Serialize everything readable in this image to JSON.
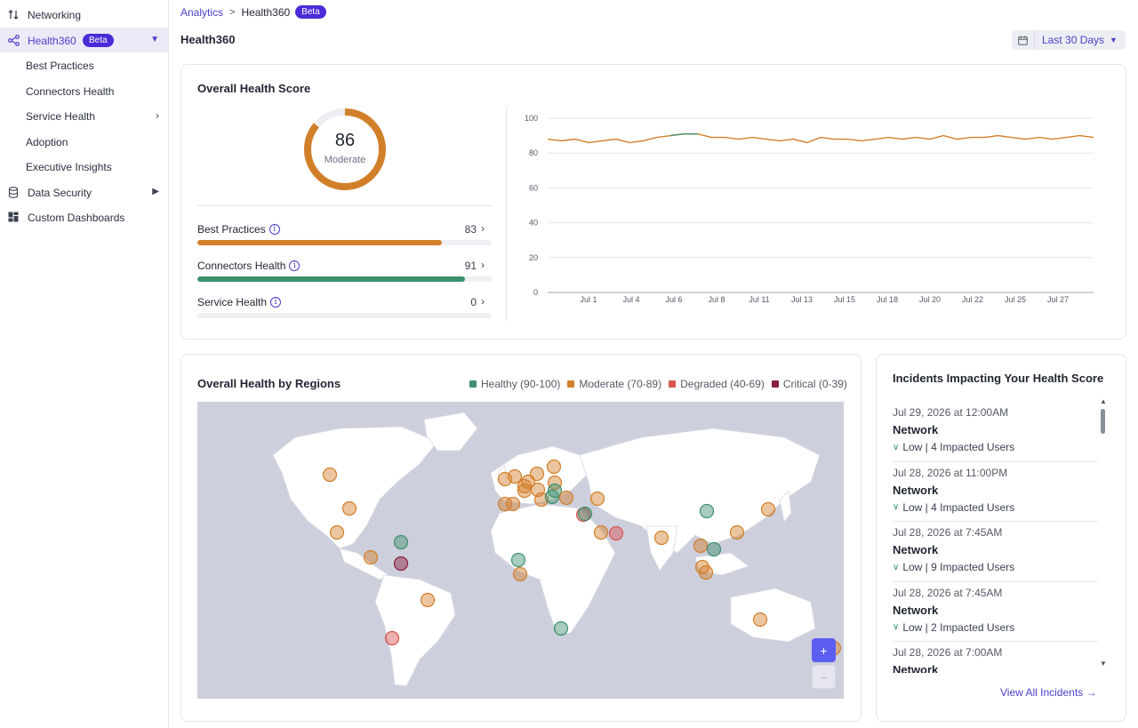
{
  "sidebar": {
    "items": [
      {
        "label": "Networking",
        "icon": "sort-arrows-icon"
      },
      {
        "label": "Health360",
        "badge": "Beta",
        "icon": "share-nodes-icon"
      },
      {
        "label": "Best Practices"
      },
      {
        "label": "Connectors Health"
      },
      {
        "label": "Service Health"
      },
      {
        "label": "Adoption"
      },
      {
        "label": "Executive Insights"
      },
      {
        "label": "Data Security",
        "icon": "database-icon"
      },
      {
        "label": "Custom Dashboards",
        "icon": "dashboard-grid-icon"
      }
    ]
  },
  "header": {
    "breadcrumb": {
      "parent": "Analytics",
      "current": "Health360",
      "badge": "Beta"
    },
    "title": "Health360",
    "date_range": "Last 30 Days"
  },
  "score_card": {
    "title": "Overall Health Score",
    "score": "86",
    "score_value": 86,
    "status": "Moderate",
    "metrics": [
      {
        "label": "Best Practices",
        "value": "83",
        "fraction": 0.83,
        "color": "#d27f2a"
      },
      {
        "label": "Connectors Health",
        "value": "91",
        "fraction": 0.91,
        "color": "#3d8f6e"
      },
      {
        "label": "Service Health",
        "value": "0",
        "fraction": 0,
        "color": "#3d8f6e"
      }
    ]
  },
  "chart_data": {
    "type": "line",
    "yticks": [
      "0",
      "20",
      "40",
      "60",
      "80",
      "100"
    ],
    "ylim": [
      0,
      100
    ],
    "xticks": [
      "Jul 1",
      "Jul 4",
      "Jul 6",
      "Jul 8",
      "Jul 11",
      "Jul 13",
      "Jul 15",
      "Jul 18",
      "Jul 20",
      "Jul 22",
      "Jul 25",
      "Jul 27"
    ],
    "series": [
      {
        "color": "#d27f2a",
        "values": [
          88,
          87,
          88,
          86,
          87,
          88,
          86,
          87,
          89,
          90,
          91,
          91,
          89,
          89,
          88,
          89,
          88,
          87,
          88,
          86,
          89,
          88,
          88,
          87,
          88,
          89,
          88,
          89,
          88,
          90,
          88,
          89,
          89,
          90,
          89,
          88,
          89,
          88,
          89,
          90,
          89
        ]
      }
    ],
    "colors": {
      "moderate": "#d27f2a",
      "healthy": "#3d8f6e"
    }
  },
  "regions_card": {
    "title": "Overall Health by Regions",
    "legend": [
      {
        "label": "Healthy (90-100)",
        "color": "#3d8f6e"
      },
      {
        "label": "Moderate (70-89)",
        "color": "#d27f2a"
      },
      {
        "label": "Degraded (40-69)",
        "color": "#d9534f"
      },
      {
        "label": "Critical (0-39)",
        "color": "#8b1d3f"
      }
    ],
    "zoom_in": "+",
    "zoom_out": "−"
  },
  "incidents": {
    "title": "Incidents Impacting Your Health Score",
    "items": [
      {
        "date": "Jul 29, 2026 at 12:00AM",
        "type": "Network",
        "meta": "Low | 4 Impacted Users"
      },
      {
        "date": "Jul 28, 2026 at 11:00PM",
        "type": "Network",
        "meta": "Low | 4 Impacted Users"
      },
      {
        "date": "Jul 28, 2026 at 7:45AM",
        "type": "Network",
        "meta": "Low | 9 Impacted Users"
      },
      {
        "date": "Jul 28, 2026 at 7:45AM",
        "type": "Network",
        "meta": "Low | 2 Impacted Users"
      },
      {
        "date": "Jul 28, 2026 at 7:00AM",
        "type": "Network",
        "meta": ""
      }
    ],
    "view_all": "View All Incidents →"
  }
}
